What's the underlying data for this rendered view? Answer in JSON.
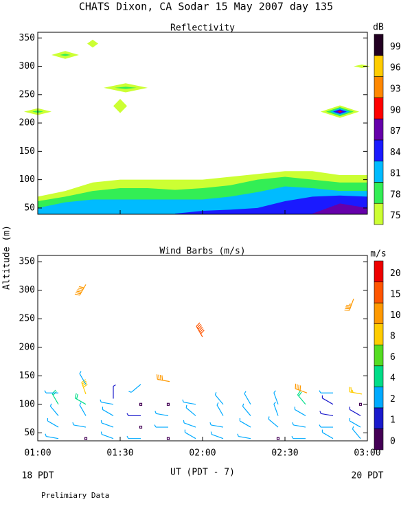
{
  "title": "CHATS Dixon, CA  Sodar  15 May 2007  day 135",
  "footer": "Prelimiary Data",
  "chart_data": [
    {
      "type": "contour",
      "title": "Reflectivity",
      "colorbar_label": "dB",
      "xlim": [
        60,
        180
      ],
      "xticks": [
        60,
        90,
        120,
        150,
        180
      ],
      "ylim": [
        39,
        360
      ],
      "yticks": [
        50,
        100,
        150,
        200,
        250,
        300,
        350
      ],
      "levels": [
        75,
        78,
        81,
        84,
        87,
        90,
        93,
        96,
        99
      ],
      "colors": [
        "#ccff33",
        "#33ee55",
        "#00bbff",
        "#1a1aff",
        "#6600aa",
        "#ff0000",
        "#ff8800",
        "#ffcc00",
        "#220022"
      ],
      "x": [
        60,
        70,
        80,
        90,
        100,
        110,
        120,
        130,
        140,
        150,
        160,
        170,
        180
      ],
      "series": [
        {
          "color": "#ccff33",
          "values": [
            70,
            80,
            95,
            100,
            100,
            100,
            100,
            105,
            110,
            115,
            115,
            108,
            108
          ]
        },
        {
          "color": "#33ee55",
          "values": [
            62,
            70,
            80,
            85,
            85,
            82,
            85,
            90,
            100,
            105,
            100,
            95,
            95
          ]
        },
        {
          "color": "#00bbff",
          "values": [
            50,
            60,
            65,
            65,
            65,
            65,
            65,
            70,
            78,
            88,
            85,
            80,
            80
          ]
        },
        {
          "color": "#1a1aff",
          "values": [
            null,
            null,
            null,
            null,
            null,
            40,
            45,
            47,
            50,
            62,
            70,
            72,
            70
          ]
        },
        {
          "color": "#6600aa",
          "values": [
            null,
            null,
            null,
            null,
            null,
            null,
            null,
            null,
            null,
            null,
            40,
            58,
            50
          ]
        }
      ],
      "features": {
        "x": [
          60,
          60,
          70,
          70,
          80,
          92,
          92,
          90,
          170,
          170,
          170,
          170,
          170,
          170,
          178
        ],
        "y": [
          220,
          220,
          320,
          320,
          340,
          262,
          262,
          230,
          220,
          220,
          220,
          220,
          220,
          220,
          300
        ],
        "width": [
          10,
          4,
          10,
          4,
          4,
          16,
          8,
          5,
          14,
          10,
          7,
          5,
          3,
          1.5,
          6
        ],
        "height": [
          12,
          4,
          14,
          4,
          14,
          16,
          4,
          25,
          22,
          16,
          12,
          8,
          5,
          3,
          6
        ],
        "level": [
          75,
          78,
          75,
          78,
          75,
          75,
          78,
          75,
          75,
          78,
          81,
          84,
          87,
          90,
          75
        ]
      }
    },
    {
      "type": "barbs",
      "title": "Wind Barbs (m/s)",
      "colorbar_label": "m/s",
      "ylabel": "Altitude (m)",
      "xlabel": "UT  (PDT - 7)",
      "xnote_left": "18 PDT",
      "xnote_right": "20 PDT",
      "xlim": [
        60,
        180
      ],
      "xticks": [
        {
          "value": 60,
          "label": "01:00"
        },
        {
          "value": 90,
          "label": "01:30"
        },
        {
          "value": 120,
          "label": "02:00"
        },
        {
          "value": 150,
          "label": "02:30"
        },
        {
          "value": 180,
          "label": "03:00"
        }
      ],
      "ylim": [
        36,
        361
      ],
      "yticks": [
        50,
        100,
        150,
        200,
        250,
        300,
        350
      ],
      "levels": [
        0,
        1,
        2,
        4,
        6,
        8,
        10,
        15,
        20
      ],
      "colors": [
        "#440055",
        "#1a1acc",
        "#00aaff",
        "#00dd88",
        "#55dd22",
        "#ffcc00",
        "#ff9900",
        "#ff5500",
        "#ee0000"
      ],
      "barbs": {
        "x": [
          67.5,
          77.5,
          87.5,
          97.5,
          107.5,
          117.5,
          127.5,
          137.5,
          147.5,
          157.5,
          167.5,
          177.5,
          67.5,
          77.5,
          87.5,
          97.5,
          107.5,
          117.5,
          127.5,
          137.5,
          147.5,
          157.5,
          167.5,
          177.5,
          67.5,
          77.5,
          87.5,
          97.5,
          107.5,
          117.5,
          127.5,
          137.5,
          147.5,
          157.5,
          167.5,
          177.5,
          67.5,
          77.5,
          87.5,
          97.5,
          107.5,
          117.5,
          127.5,
          137.5,
          147.5,
          157.5,
          167.5,
          177.5,
          67.5,
          77.5,
          87.5,
          97.5,
          77.5,
          77.5,
          120,
          175,
          108,
          158,
          178,
          167.5
        ],
        "y": [
          40,
          40,
          40,
          40,
          40,
          40,
          40,
          40,
          40,
          40,
          40,
          40,
          60,
          60,
          60,
          60,
          60,
          60,
          60,
          60,
          60,
          60,
          60,
          60,
          80,
          80,
          80,
          80,
          80,
          80,
          80,
          80,
          80,
          80,
          80,
          80,
          100,
          100,
          100,
          100,
          100,
          100,
          100,
          100,
          100,
          100,
          100,
          100,
          120,
          118,
          110,
          135,
          135,
          310,
          218,
          285,
          140,
          120,
          118,
          120
        ],
        "speed": [
          3,
          0.5,
          3,
          3,
          0.5,
          3,
          3,
          2.5,
          0.5,
          3,
          3,
          2,
          3,
          3,
          3,
          0.5,
          3,
          3,
          3,
          3,
          3,
          3,
          3,
          3,
          3,
          3,
          3,
          1.5,
          3,
          3,
          3,
          3,
          3,
          3,
          1.5,
          1.5,
          5,
          5,
          3,
          0.5,
          0.5,
          3,
          3,
          3,
          3,
          5,
          1.5,
          0.5,
          3,
          9,
          1,
          3,
          3,
          14,
          16,
          12,
          10,
          10,
          8,
          3
        ],
        "direction": [
          280,
          0,
          290,
          270,
          0,
          300,
          290,
          280,
          0,
          270,
          300,
          320,
          300,
          280,
          290,
          0,
          270,
          290,
          280,
          300,
          310,
          280,
          270,
          300,
          320,
          330,
          300,
          270,
          280,
          310,
          330,
          320,
          340,
          300,
          280,
          300,
          330,
          300,
          280,
          0,
          0,
          280,
          320,
          330,
          340,
          320,
          300,
          0,
          270,
          340,
          0,
          230,
          330,
          210,
          330,
          200,
          280,
          290,
          280,
          270
        ]
      }
    }
  ]
}
